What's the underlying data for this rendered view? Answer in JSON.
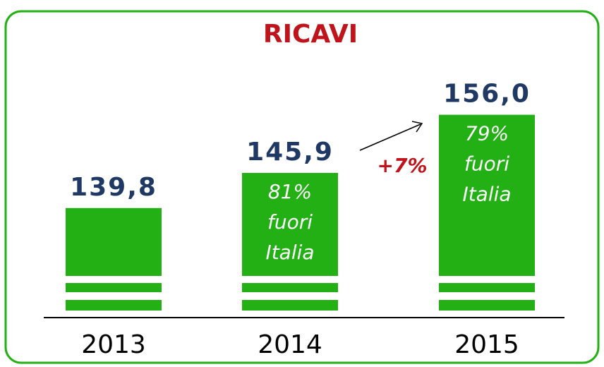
{
  "chart_data": {
    "type": "bar",
    "title": "RICAVI",
    "categories": [
      "2013",
      "2014",
      "2015"
    ],
    "values": [
      139.8,
      145.9,
      156.0
    ],
    "value_labels": [
      "139,8",
      "145,9",
      "156,0"
    ],
    "color": "#22b014",
    "ylim": [
      128,
      160
    ],
    "bar_notes": [
      null,
      [
        "81%",
        "fuori",
        "Italia"
      ],
      [
        "79%",
        "fuori",
        "Italia"
      ]
    ],
    "growth_label": "+7%"
  }
}
